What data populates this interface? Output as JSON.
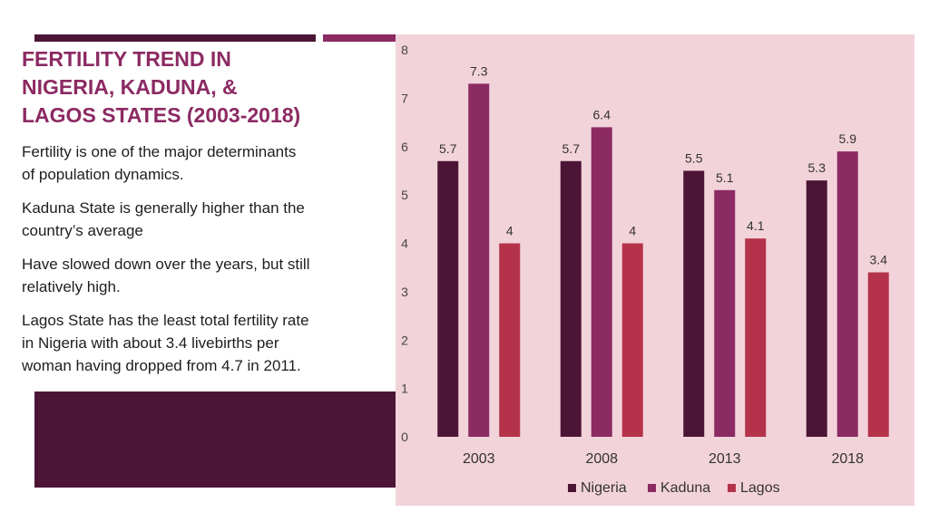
{
  "slide": {
    "title_lines": [
      "FERTILITY TREND IN",
      "NIGERIA, KADUNA, &",
      "LAGOS STATES (2003-2018)"
    ],
    "bullets": [
      {
        "lines": [
          "Fertility is one of the major determinants",
          "of population dynamics."
        ]
      },
      {
        "lines": [
          "Kaduna State is generally higher than the",
          "country’s average"
        ]
      },
      {
        "lines": [
          "Have slowed down over the years, but still",
          "relatively high."
        ]
      },
      {
        "lines": [
          "Lagos State has the least total fertility rate",
          "in Nigeria with about 3.4 livebirths per",
          "woman having dropped from 4.7 in 2011."
        ]
      }
    ]
  },
  "colors": {
    "title": "#8c2a63",
    "dark_block": "#4d1535",
    "panel": "#f2d3da"
  },
  "chart_data": {
    "type": "bar",
    "title": "",
    "xlabel": "",
    "ylabel": "",
    "categories": [
      "2003",
      "2008",
      "2013",
      "2018"
    ],
    "series": [
      {
        "name": "Nigeria",
        "color": "#4d1535",
        "values": [
          5.7,
          5.7,
          5.5,
          5.3
        ]
      },
      {
        "name": "Kaduna",
        "color": "#8c2a63",
        "values": [
          7.3,
          6.4,
          5.1,
          5.9
        ]
      },
      {
        "name": "Lagos",
        "color": "#b5324b",
        "values": [
          4,
          4,
          4.1,
          3.4
        ]
      }
    ],
    "ylim": [
      0,
      8
    ],
    "yticks": [
      "0",
      "1",
      "2",
      "3",
      "4",
      "5",
      "6",
      "7",
      "8"
    ],
    "grid": false,
    "legend": "bottom"
  }
}
